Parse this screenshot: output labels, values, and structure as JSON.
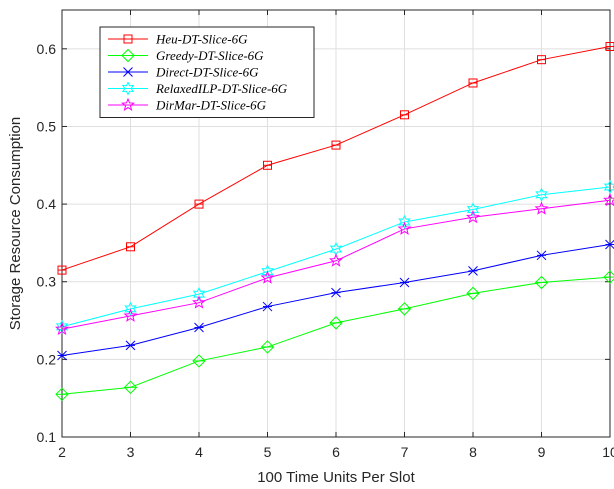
{
  "chart_data": {
    "type": "line",
    "title": "",
    "xlabel": "100 Time Units Per Slot",
    "ylabel": "Storage Resource Consumption",
    "xlim": [
      2,
      10
    ],
    "ylim": [
      0.1,
      0.65
    ],
    "x": [
      2,
      3,
      4,
      5,
      6,
      7,
      8,
      9,
      10
    ],
    "x_ticks": [
      "2",
      "3",
      "4",
      "5",
      "6",
      "7",
      "8",
      "9",
      "10"
    ],
    "y_tick_values": [
      0.1,
      0.2,
      0.3,
      0.4,
      0.5,
      0.6
    ],
    "y_ticks": [
      "0.1",
      "0.2",
      "0.3",
      "0.4",
      "0.5",
      "0.6"
    ],
    "grid": true,
    "legend_position": "top-left",
    "series": [
      {
        "name": "Heu-DT-Slice-6G",
        "color": "#ff0000",
        "marker": "square",
        "values": [
          0.315,
          0.345,
          0.4,
          0.45,
          0.476,
          0.515,
          0.556,
          0.586,
          0.603
        ]
      },
      {
        "name": "Greedy-DT-Slice-6G",
        "color": "#00ff00",
        "marker": "diamond",
        "values": [
          0.155,
          0.164,
          0.198,
          0.216,
          0.247,
          0.265,
          0.285,
          0.299,
          0.306
        ]
      },
      {
        "name": "Direct-DT-Slice-6G",
        "color": "#0000ff",
        "marker": "asterisk",
        "values": [
          0.205,
          0.218,
          0.241,
          0.268,
          0.286,
          0.299,
          0.314,
          0.334,
          0.348
        ]
      },
      {
        "name": "RelaxedILP-DT-Slice-6G",
        "color": "#00ffff",
        "marker": "hexagram",
        "values": [
          0.242,
          0.265,
          0.284,
          0.313,
          0.342,
          0.377,
          0.393,
          0.412,
          0.422
        ]
      },
      {
        "name": "DirMar-DT-Slice-6G",
        "color": "#ff00ff",
        "marker": "pentagram",
        "values": [
          0.239,
          0.256,
          0.273,
          0.305,
          0.327,
          0.368,
          0.383,
          0.394,
          0.405
        ]
      }
    ]
  }
}
